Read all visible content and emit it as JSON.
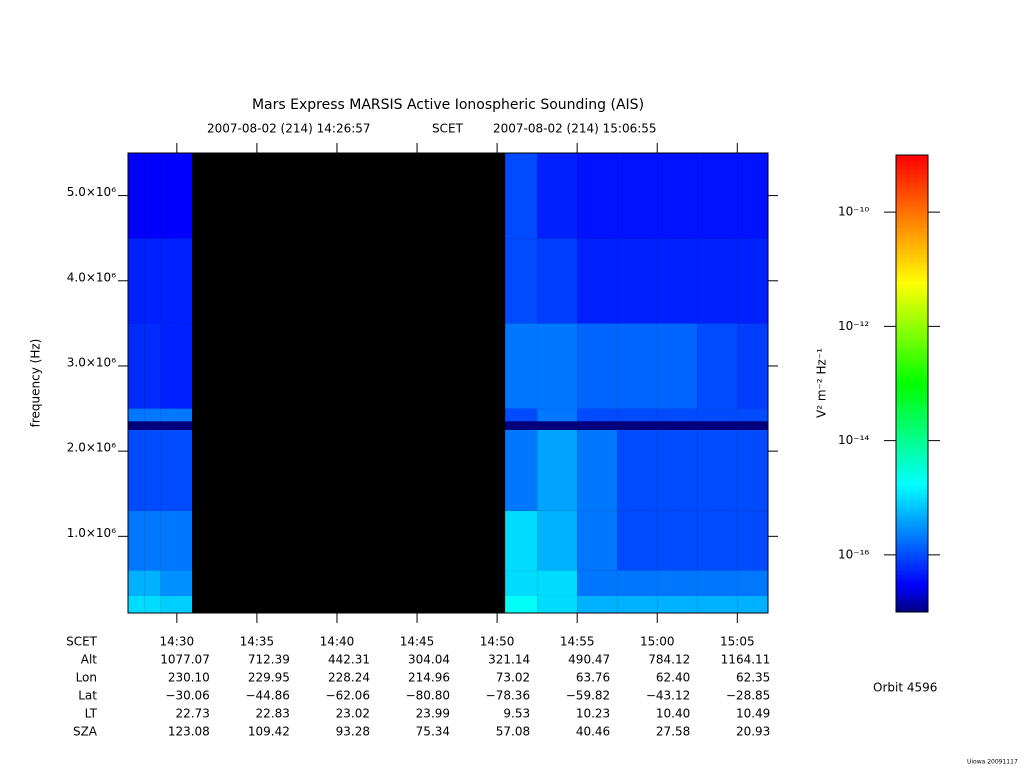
{
  "chart_data": {
    "type": "spectrogram",
    "title": "Mars Express MARSIS Active Ionospheric Sounding (AIS)",
    "subtitle_start": "2007-08-02 (214) 14:26:57",
    "subtitle_mid": "SCET",
    "subtitle_end": "2007-08-02 (214) 15:06:55",
    "y_label": "frequency (Hz)",
    "z_label": "V² m⁻² Hz⁻¹",
    "xlim": [
      "14:26:57",
      "15:06:55"
    ],
    "xticks": [
      "14:30",
      "14:35",
      "14:40",
      "14:45",
      "14:50",
      "14:55",
      "15:00",
      "15:05"
    ],
    "ylim": [
      100000,
      5500000
    ],
    "yticks": [
      {
        "value": 1000000,
        "label": "1.0×10⁶"
      },
      {
        "value": 2000000,
        "label": "2.0×10⁶"
      },
      {
        "value": 3000000,
        "label": "3.0×10⁶"
      },
      {
        "value": 4000000,
        "label": "4.0×10⁶"
      },
      {
        "value": 5000000,
        "label": "5.0×10⁶"
      }
    ],
    "zlim": [
      1e-17,
      1e-09
    ],
    "zscale": "log",
    "zticks": [
      {
        "value": 1e-10,
        "label": "10⁻¹⁰"
      },
      {
        "value": 1e-12,
        "label": "10⁻¹²"
      },
      {
        "value": 1e-14,
        "label": "10⁻¹⁴"
      },
      {
        "value": 1e-16,
        "label": "10⁻¹⁶"
      }
    ],
    "colormap": "rainbow",
    "time_bins": [
      "14:26:57",
      "14:28:00",
      "14:29:00",
      "14:30:57",
      "14:50:30",
      "14:52:30",
      "14:55:00",
      "14:57:30",
      "15:00:00",
      "15:02:30",
      "15:05:00",
      "15:06:55"
    ],
    "freq_bins": [
      100000,
      300000,
      600000,
      1300000,
      2250000,
      2350000,
      2500000,
      3500000,
      4500000,
      5500000
    ],
    "values": [
      [
        1e-15,
        1e-15,
        8e-16,
        null,
        2e-15,
        1e-15,
        5e-16,
        5e-16,
        5e-16,
        5e-16,
        5e-16
      ],
      [
        5e-16,
        5e-16,
        3e-16,
        null,
        1e-15,
        1e-15,
        2e-16,
        2e-16,
        2e-16,
        2e-16,
        2e-16
      ],
      [
        2e-16,
        2e-16,
        2e-16,
        null,
        1e-15,
        5e-16,
        2e-16,
        1e-16,
        1e-16,
        1e-16,
        1e-16
      ],
      [
        1e-16,
        1e-16,
        1e-16,
        null,
        2e-16,
        4e-16,
        2e-16,
        1e-16,
        1e-16,
        1e-16,
        1e-16
      ],
      [
        1e-17,
        1e-17,
        1e-17,
        null,
        1e-17,
        1e-17,
        1e-17,
        1e-17,
        1e-17,
        1e-17,
        1e-17
      ],
      [
        2e-16,
        2e-16,
        2e-16,
        null,
        1e-16,
        2e-16,
        1e-16,
        1e-16,
        1e-16,
        1e-16,
        1e-16
      ],
      [
        6e-17,
        6e-17,
        5e-17,
        null,
        2e-16,
        2e-16,
        1.5e-16,
        1.5e-16,
        1.5e-16,
        1e-16,
        8e-17
      ],
      [
        5e-17,
        5e-17,
        5e-17,
        null,
        1e-16,
        8e-17,
        5e-17,
        5e-17,
        5e-17,
        5e-17,
        5e-17
      ],
      [
        3e-17,
        3e-17,
        3e-17,
        null,
        1e-16,
        5e-17,
        4e-17,
        4e-17,
        4e-17,
        4e-17,
        4e-17
      ]
    ],
    "ephemeris": {
      "row_labels": [
        "SCET",
        "Alt",
        "Lon",
        "Lat",
        "LT",
        "SZA"
      ],
      "rows": [
        [
          "1077.07",
          "712.39",
          "442.31",
          "304.04",
          "321.14",
          "490.47",
          "784.12",
          "1164.11"
        ],
        [
          "230.10",
          "229.95",
          "228.24",
          "214.96",
          "73.02",
          "63.76",
          "62.40",
          "62.35"
        ],
        [
          "−30.06",
          "−44.86",
          "−62.06",
          "−80.80",
          "−78.36",
          "−59.82",
          "−43.12",
          "−28.85"
        ],
        [
          "22.73",
          "22.83",
          "23.02",
          "23.99",
          "9.53",
          "10.23",
          "10.40",
          "10.49"
        ],
        [
          "123.08",
          "109.42",
          "93.28",
          "75.34",
          "57.08",
          "40.46",
          "27.58",
          "20.93"
        ]
      ]
    },
    "orbit": "Orbit 4596",
    "credit": "Uiowa 20091117"
  }
}
